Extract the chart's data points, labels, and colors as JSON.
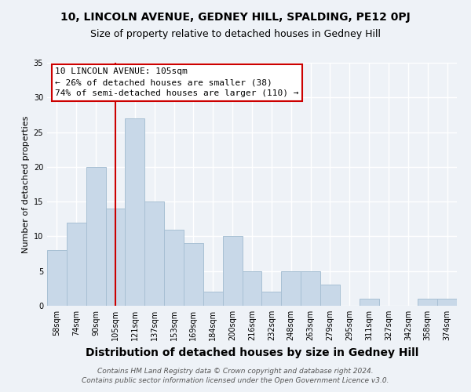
{
  "title": "10, LINCOLN AVENUE, GEDNEY HILL, SPALDING, PE12 0PJ",
  "subtitle": "Size of property relative to detached houses in Gedney Hill",
  "xlabel": "Distribution of detached houses by size in Gedney Hill",
  "ylabel": "Number of detached properties",
  "bar_labels": [
    "58sqm",
    "74sqm",
    "90sqm",
    "105sqm",
    "121sqm",
    "137sqm",
    "153sqm",
    "169sqm",
    "184sqm",
    "200sqm",
    "216sqm",
    "232sqm",
    "248sqm",
    "263sqm",
    "279sqm",
    "295sqm",
    "311sqm",
    "327sqm",
    "342sqm",
    "358sqm",
    "374sqm"
  ],
  "bar_heights": [
    8,
    12,
    20,
    14,
    27,
    15,
    11,
    9,
    2,
    10,
    5,
    2,
    5,
    5,
    3,
    0,
    1,
    0,
    0,
    1,
    1
  ],
  "bar_color": "#c8d8e8",
  "bar_edge_color": "#a8c0d4",
  "vline_x_index": 3,
  "vline_color": "#cc0000",
  "annotation_title": "10 LINCOLN AVENUE: 105sqm",
  "annotation_line1": "← 26% of detached houses are smaller (38)",
  "annotation_line2": "74% of semi-detached houses are larger (110) →",
  "annotation_box_color": "#ffffff",
  "annotation_box_edge": "#cc0000",
  "ylim": [
    0,
    35
  ],
  "yticks": [
    0,
    5,
    10,
    15,
    20,
    25,
    30,
    35
  ],
  "footer1": "Contains HM Land Registry data © Crown copyright and database right 2024.",
  "footer2": "Contains public sector information licensed under the Open Government Licence v3.0.",
  "background_color": "#eef2f7",
  "grid_color": "#ffffff",
  "title_fontsize": 10,
  "subtitle_fontsize": 9,
  "xlabel_fontsize": 10,
  "ylabel_fontsize": 8,
  "tick_fontsize": 7,
  "annotation_fontsize": 8,
  "footer_fontsize": 6.5
}
